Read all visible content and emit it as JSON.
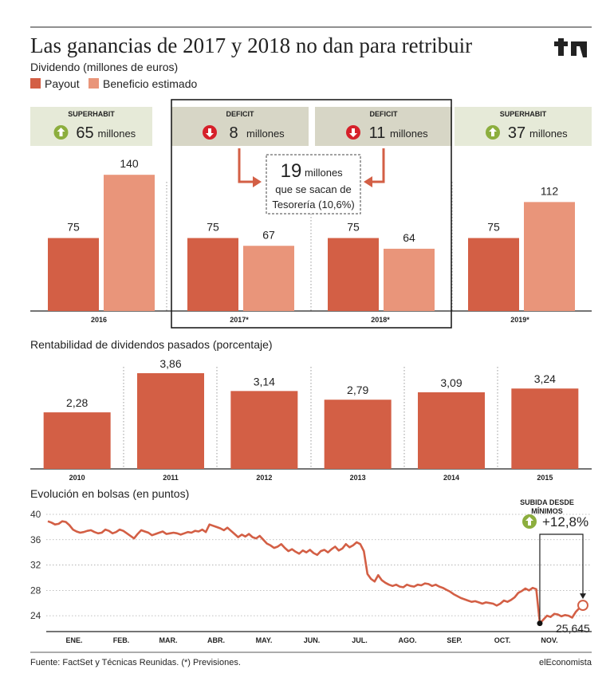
{
  "header": {
    "title": "Las ganancias de 2017 y 2018 no dan para retribuir",
    "logo_text": "tr"
  },
  "colors": {
    "payout": "#d35f45",
    "beneficio": "#e9957a",
    "box_light": "#e6ead8",
    "box_dark": "#d7d6c6",
    "line": "#d35f45",
    "up": "#8cae3e",
    "down": "#d6202a"
  },
  "chart_data": [
    {
      "type": "bar",
      "title": "Dividendo (millones de euros)",
      "categories": [
        "2016",
        "2017*",
        "2018*",
        "2019*"
      ],
      "series": [
        {
          "name": "Payout",
          "values": [
            75,
            75,
            75,
            75
          ]
        },
        {
          "name": "Beneficio estimado",
          "values": [
            140,
            67,
            64,
            112
          ]
        }
      ],
      "legend": "top-left",
      "balances": [
        {
          "label": "SUPERHABIT",
          "value": "65",
          "unit": "millones",
          "direction": "up-icon"
        },
        {
          "label": "DEFICIT",
          "value": "8",
          "unit": "millones",
          "direction": "down-icon"
        },
        {
          "label": "DEFICIT",
          "value": "11",
          "unit": "millones",
          "direction": "down-icon"
        },
        {
          "label": "SUPERHABIT",
          "value": "37",
          "unit": "millones",
          "direction": "up-icon"
        }
      ],
      "annotation": {
        "big": "19",
        "line1": "millones",
        "line2": "que se sacan de",
        "line3": "Tesorería (10,6%)"
      }
    },
    {
      "type": "bar",
      "title": "Rentabilidad de dividendos pasados (porcentaje)",
      "categories": [
        "2010",
        "2011",
        "2012",
        "2013",
        "2014",
        "2015"
      ],
      "values": [
        2.28,
        3.86,
        3.14,
        2.79,
        3.09,
        3.24
      ],
      "labels": [
        "2,28",
        "3,86",
        "3,14",
        "2,79",
        "3,09",
        "3,24"
      ]
    },
    {
      "type": "line",
      "title": "Evolución en bolsas  (en puntos)",
      "x_labels": [
        "ENE.",
        "FEB.",
        "MAR.",
        "ABR.",
        "MAY.",
        "JUN.",
        "JUL.",
        "AGO.",
        "SEP.",
        "OCT.",
        "NOV."
      ],
      "y_ticks": [
        40,
        36,
        32,
        28,
        24
      ],
      "ylim": [
        21.5,
        40
      ],
      "grid": "horizontal-dotted",
      "series": [
        {
          "values": [
            38.9,
            38.7,
            38.4,
            38.5,
            38.9,
            38.8,
            38.3,
            37.6,
            37.3,
            37.1,
            37.2,
            37.4,
            37.5,
            37.2,
            37.0,
            37.1,
            37.6,
            37.4,
            37.0,
            37.2,
            37.6,
            37.4,
            37.0,
            36.6,
            36.2,
            36.9,
            37.5,
            37.3,
            37.1,
            36.7,
            36.9,
            37.1,
            37.3,
            36.9,
            37.0,
            37.1,
            37.0,
            36.8,
            37.0,
            37.2,
            37.1,
            37.4,
            37.3,
            37.6,
            37.2,
            38.4,
            38.2,
            38.0,
            37.8,
            37.5,
            37.9,
            37.4,
            36.9,
            36.4,
            36.8,
            36.5,
            36.9,
            36.4,
            36.2,
            36.6,
            36.0,
            35.4,
            35.1,
            34.7,
            34.9,
            35.3,
            34.7,
            34.2,
            34.5,
            34.1,
            33.8,
            34.3,
            34.0,
            34.4,
            33.9,
            33.6,
            34.2,
            34.4,
            34.0,
            34.5,
            34.9,
            34.3,
            34.6,
            35.3,
            34.8,
            35.1,
            35.6,
            35.3,
            34.2,
            30.6,
            29.8,
            29.4,
            30.4,
            29.6,
            29.2,
            28.9,
            28.7,
            28.9,
            28.6,
            28.5,
            28.9,
            28.7,
            28.6,
            28.9,
            28.8,
            29.1,
            29.0,
            28.7,
            28.9,
            28.6,
            28.4,
            28.1,
            27.8,
            27.4,
            27.1,
            26.8,
            26.6,
            26.4,
            26.2,
            26.3,
            26.1,
            25.9,
            26.1,
            26.0,
            25.9,
            25.6,
            25.9,
            26.4,
            26.2,
            26.5,
            26.9,
            27.6,
            27.9,
            28.3,
            28.0,
            28.4,
            28.2,
            22.8,
            23.4,
            24.0,
            23.8,
            24.3,
            24.2,
            23.9,
            24.1,
            24.0,
            23.7,
            24.6,
            25.2,
            25.645
          ]
        }
      ],
      "minimum_marker": "min-point",
      "rise_label": "SUBIDA DESDE",
      "rise_label2": "MÍNIMOS",
      "rise_value": "+12,8%",
      "last_value": "25,645"
    }
  ],
  "footer": {
    "source": "Fuente: FactSet y Técnicas Reunidas. (*) Previsiones.",
    "brand": "elEconomista"
  }
}
